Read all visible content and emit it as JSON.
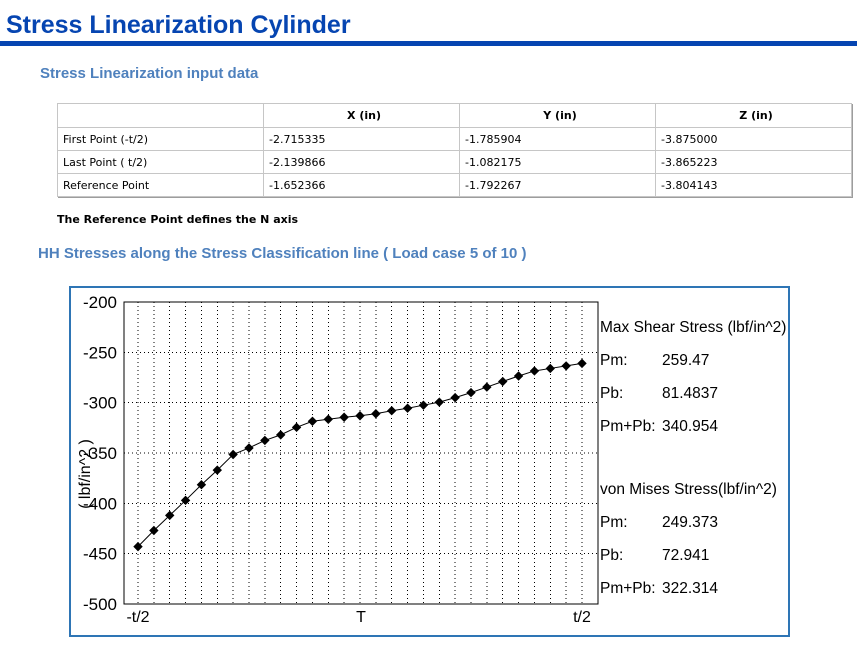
{
  "page": {
    "title": "Stress Linearization Cylinder"
  },
  "colors": {
    "title_blue": "#0645b1",
    "heading_blue": "#4f81bd",
    "chart_border_blue": "#2e75b5",
    "series_color": "#000000",
    "table_border_gray": "#c6c6c6"
  },
  "input_section": {
    "heading": "Stress Linearization input data",
    "table": {
      "columns": [
        "",
        "X (in)",
        "Y (in)",
        "Z (in)"
      ],
      "rows": [
        {
          "label": "First Point (-t/2)",
          "x": "-2.715335",
          "y": "-1.785904",
          "z": "-3.875000"
        },
        {
          "label": "Last Point ( t/2)",
          "x": "-2.139866",
          "y": "-1.082175",
          "z": "-3.865223"
        },
        {
          "label": "Reference Point",
          "x": "-1.652366",
          "y": "-1.792267",
          "z": "-3.804143"
        }
      ]
    },
    "note": "The Reference Point defines the N axis"
  },
  "chart_section": {
    "heading": "HH Stresses along the Stress Classification line ( Load case 5 of 10 )"
  },
  "chart_data": {
    "type": "line",
    "title": "",
    "xlabel": "",
    "ylabel": "( lbf/in^2 )",
    "xticks": [
      "-t/2",
      "T",
      "t/2"
    ],
    "yticks": [
      -200,
      -250,
      -300,
      -350,
      -400,
      -450,
      -500
    ],
    "ylim": [
      -500,
      -200
    ],
    "grid": "dotted-both-axes",
    "marker": "diamond",
    "line_color": "#000000",
    "values": [
      -443,
      -427,
      -412,
      -397,
      -381.5,
      -367,
      -351.5,
      -345,
      -337.5,
      -332,
      -324.5,
      -318.5,
      -316.5,
      -314.5,
      -313,
      -311,
      -308,
      -305.5,
      -302.5,
      -299.5,
      -295,
      -290,
      -284.5,
      -279,
      -273.5,
      -268.5,
      -266,
      -263.5,
      -261
    ],
    "annotations": {
      "max_shear": {
        "title": "Max Shear Stress (lbf/in^2)",
        "pm_label": "Pm:",
        "pm": "259.47",
        "pb_label": "Pb:",
        "pb": "81.4837",
        "pmpb_label": "Pm+Pb:",
        "pmpb": "340.954"
      },
      "von_mises": {
        "title": "von Mises Stress(lbf/in^2)",
        "pm_label": "Pm:",
        "pm": "249.373",
        "pb_label": "Pb:",
        "pb": "72.941",
        "pmpb_label": "Pm+Pb:",
        "pmpb": "322.314"
      }
    }
  }
}
